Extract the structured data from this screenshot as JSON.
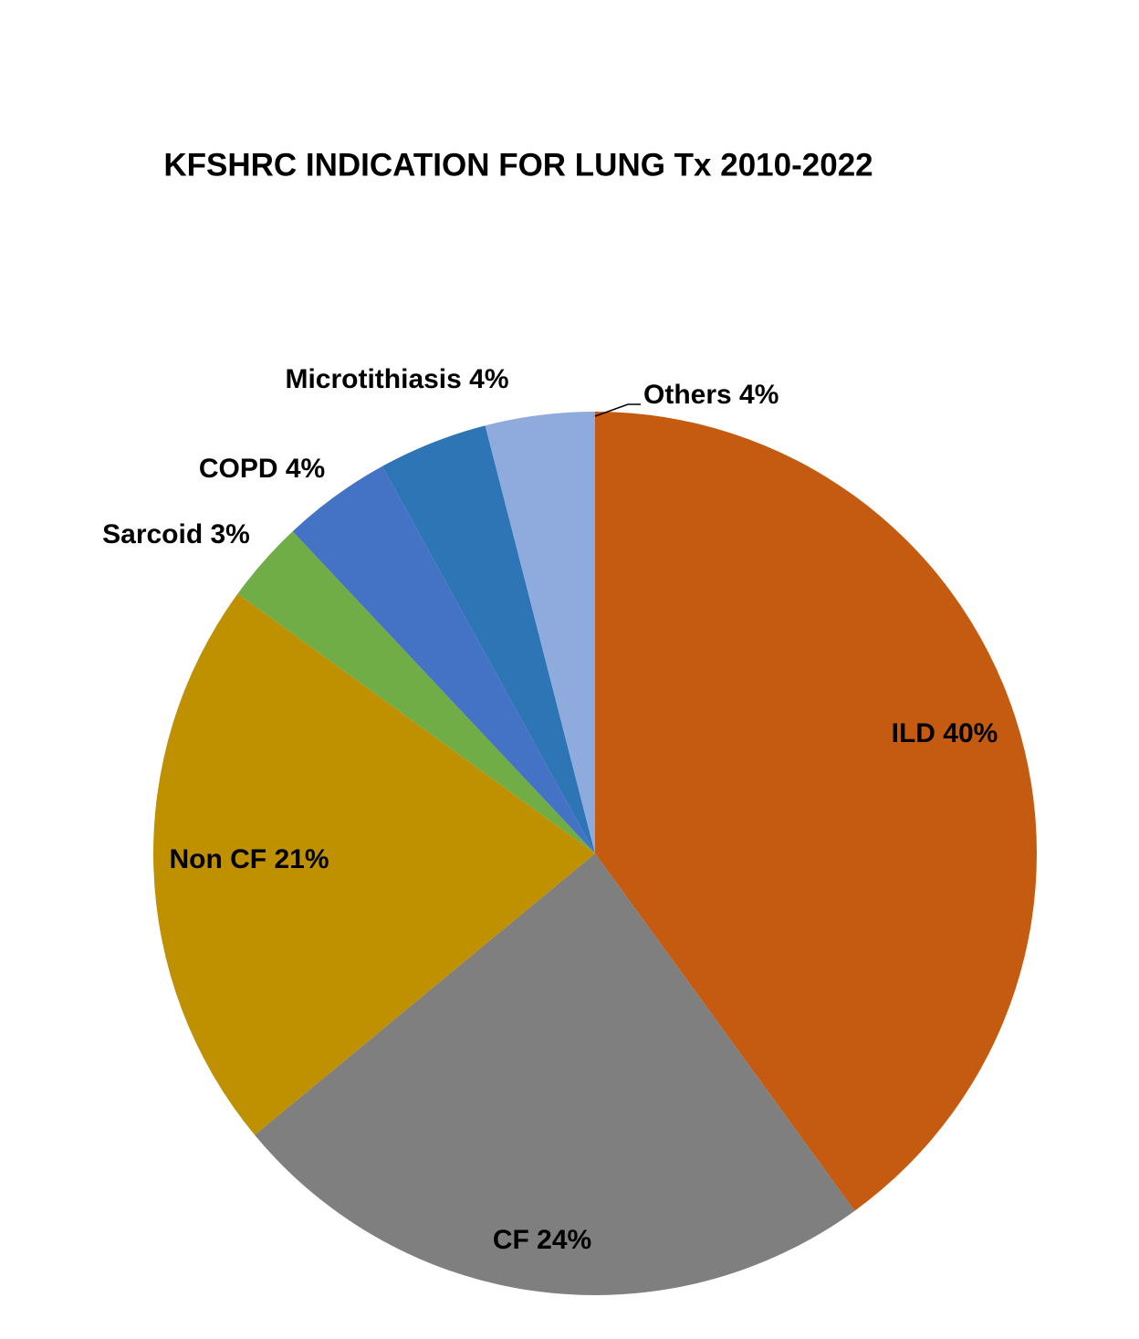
{
  "chart_data": {
    "type": "pie",
    "title": "KFSHRC INDICATION FOR LUNG Tx 2010-2022",
    "values": [
      40,
      24,
      21,
      3,
      4,
      4,
      4
    ],
    "value_labels": [
      "ILD 40%",
      "CF 24%",
      "Non CF 21%",
      "Sarcoid 3%",
      "COPD 4%",
      "Microtithiasis 4%",
      "Others 4%"
    ],
    "colors": [
      "#c55a11",
      "#7f7f7f",
      "#bf9000",
      "#70ad47",
      "#4472c4",
      "#2e75b6",
      "#8faadc"
    ]
  }
}
